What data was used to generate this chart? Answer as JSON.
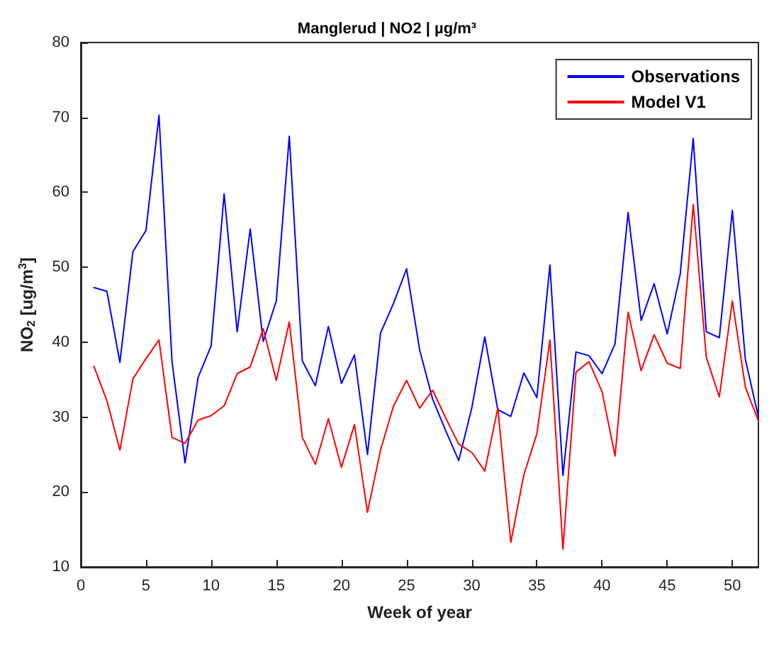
{
  "chart_data": {
    "type": "line",
    "title": "Manglerud | NO2 | µg/m³",
    "xlabel": "Week of year",
    "ylabel": "NO$_{2}$ [ug/m$^{3}$]",
    "x": [
      1,
      2,
      3,
      4,
      5,
      6,
      7,
      8,
      9,
      10,
      11,
      12,
      13,
      14,
      15,
      16,
      17,
      18,
      19,
      20,
      21,
      22,
      23,
      24,
      25,
      26,
      27,
      28,
      29,
      30,
      31,
      32,
      33,
      34,
      35,
      36,
      37,
      38,
      39,
      40,
      41,
      42,
      43,
      44,
      45,
      46,
      47,
      48,
      49,
      50,
      51,
      52
    ],
    "series": [
      {
        "name": "Observations",
        "color": "#0000ff",
        "values": [
          47.3,
          46.8,
          37.3,
          52.1,
          54.9,
          70.3,
          37.4,
          23.9,
          35.3,
          39.5,
          59.8,
          41.4,
          55.1,
          40.1,
          45.5,
          67.5,
          37.5,
          34.2,
          42.1,
          34.5,
          38.3,
          25.0,
          41.2,
          45.2,
          49.8,
          39.0,
          32.4,
          28.2,
          24.2,
          31.2,
          40.7,
          31.0,
          30.1,
          35.9,
          32.6,
          50.3,
          22.2,
          38.7,
          38.2,
          35.8,
          39.8,
          57.3,
          42.9,
          47.8,
          41.1,
          49.1,
          67.2,
          41.4,
          40.6,
          57.6,
          37.7,
          30.0
        ]
      },
      {
        "name": "Model V1",
        "color": "#ff0000",
        "values": [
          36.8,
          32.2,
          25.6,
          35.1,
          37.8,
          40.3,
          27.3,
          26.5,
          29.6,
          30.2,
          31.5,
          35.8,
          36.7,
          41.8,
          34.9,
          42.7,
          27.3,
          23.7,
          29.8,
          23.3,
          29.0,
          17.3,
          25.6,
          31.5,
          34.9,
          31.2,
          33.6,
          29.9,
          26.4,
          25.3,
          22.8,
          31.2,
          13.3,
          22.3,
          27.8,
          40.3,
          12.4,
          36.0,
          37.4,
          33.4,
          24.8,
          44.0,
          36.2,
          41.0,
          37.2,
          36.5,
          58.4,
          38.0,
          32.7,
          45.5,
          34.0,
          29.5
        ]
      }
    ],
    "xlim": [
      0,
      52
    ],
    "xticks": [
      0,
      5,
      10,
      15,
      20,
      25,
      30,
      35,
      40,
      45,
      50
    ],
    "ylim": [
      10,
      80
    ],
    "yticks": [
      10,
      20,
      30,
      40,
      50,
      60,
      70,
      80
    ],
    "legend": "top right",
    "marker": "none",
    "line_style": "solid",
    "grid": false
  }
}
